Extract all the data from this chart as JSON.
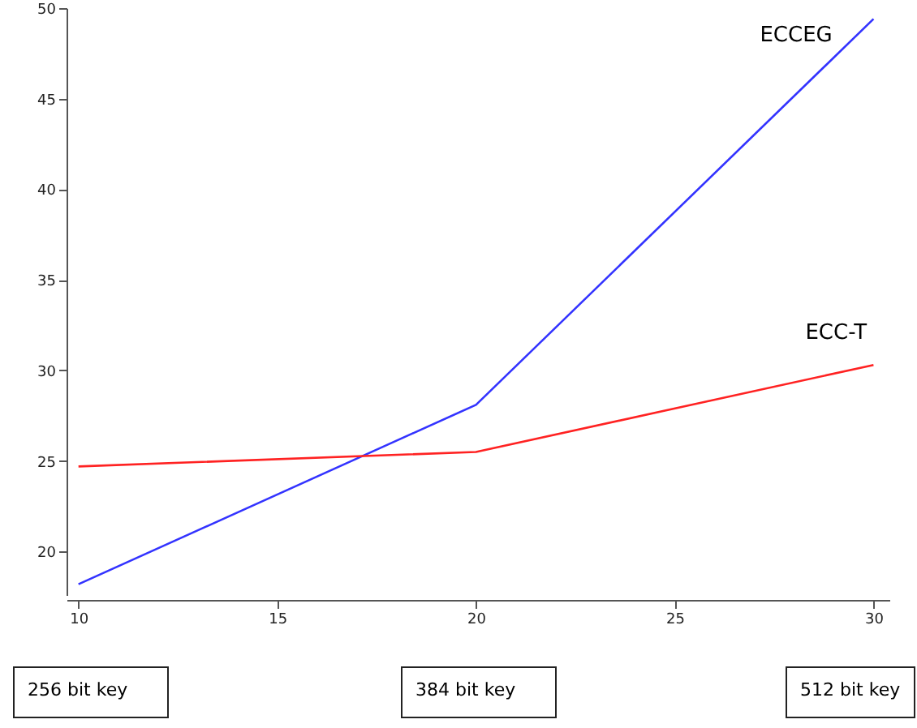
{
  "chart_data": {
    "type": "line",
    "x": [
      10,
      20,
      30
    ],
    "series": [
      {
        "name": "ECCEG",
        "color": "#3333ff",
        "values": [
          18.2,
          28.1,
          49.4
        ]
      },
      {
        "name": "ECC-T",
        "color": "#ff2222",
        "values": [
          24.7,
          25.5,
          30.3
        ]
      }
    ],
    "xlim": [
      9.7,
      30.4
    ],
    "xticks": [
      10,
      15,
      20,
      25,
      30
    ],
    "ylim": [
      17.6,
      50
    ],
    "yticks": [
      20,
      25,
      30,
      35,
      40,
      45,
      50
    ],
    "grid": false,
    "annotations": [
      "256 bit key",
      "384 bit key",
      "512 bit key"
    ]
  }
}
